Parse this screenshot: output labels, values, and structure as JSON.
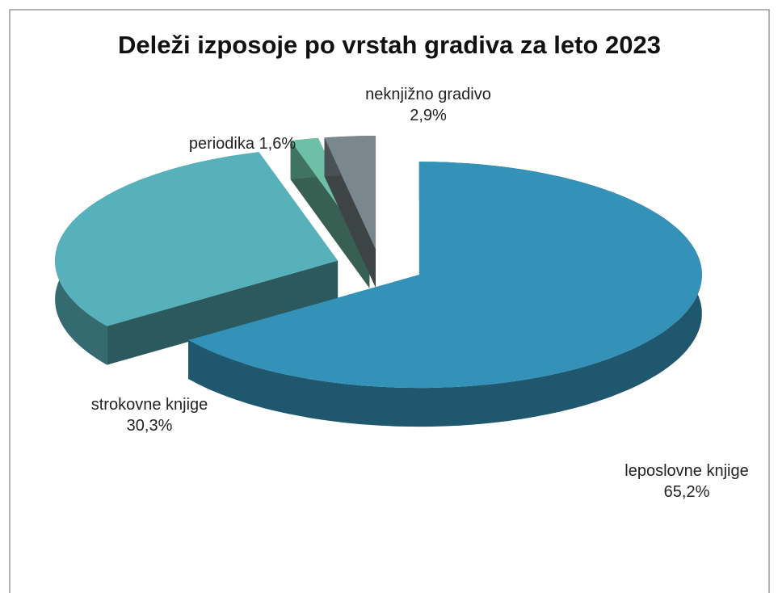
{
  "chart_data": {
    "type": "pie3d",
    "title": "Deleži izposoje po vrstah gradiva za leto 2023",
    "categories": [
      "leposlovne knjige",
      "strokovne knjige",
      "periodika",
      "neknjižno gradivo"
    ],
    "values": [
      65.2,
      30.3,
      1.6,
      2.9
    ],
    "value_labels": [
      "65,2%",
      "30,3%",
      "1,6%",
      "2,9%"
    ],
    "colors": [
      "#3491b8",
      "#56b1bb",
      "#6dbfa5",
      "#7a878c"
    ]
  }
}
